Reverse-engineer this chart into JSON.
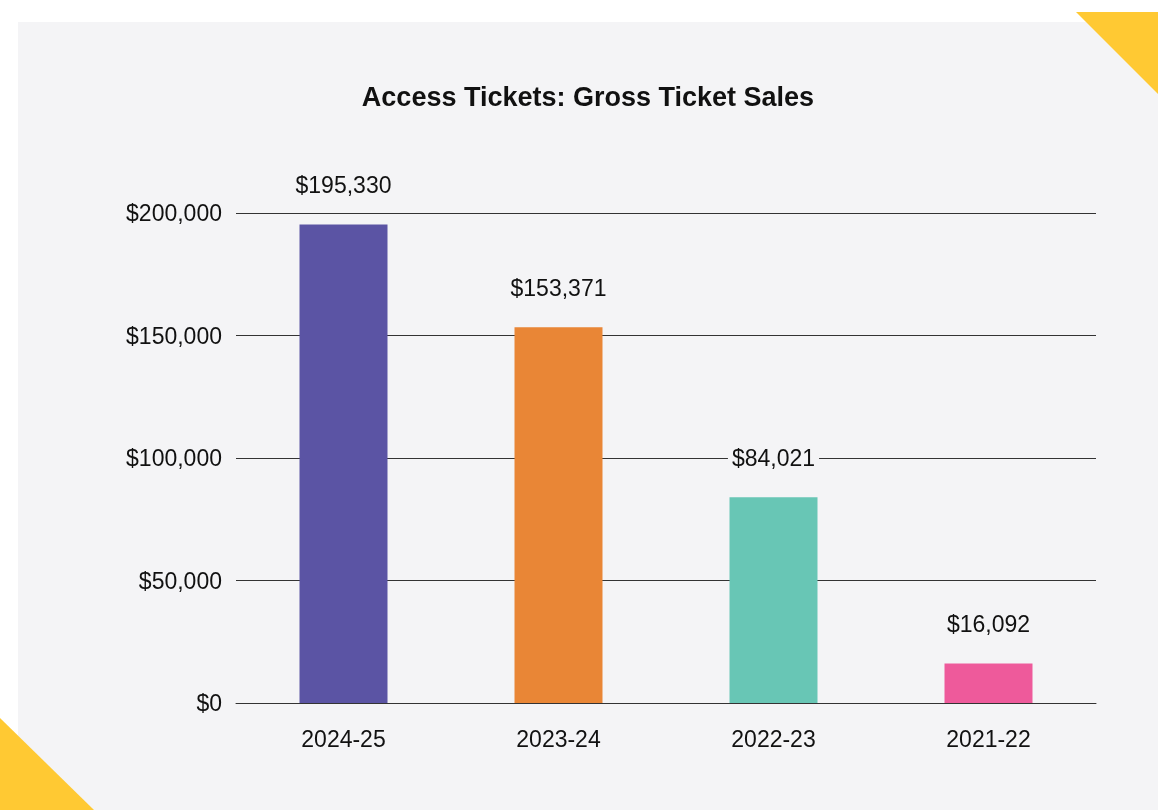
{
  "chart_data": {
    "type": "bar",
    "title": "Access Tickets: Gross Ticket Sales",
    "categories": [
      "2024-25",
      "2023-24",
      "2022-23",
      "2021-22"
    ],
    "values": [
      195330,
      153371,
      84021,
      16092
    ],
    "colors": [
      "#5b54a4",
      "#e98636",
      "#68c6b5",
      "#ee5a9b"
    ],
    "value_labels": [
      "$195,330",
      "$153,371",
      "$84,021",
      "$16,092"
    ],
    "ylim": [
      0,
      200000
    ],
    "yticks": [
      {
        "value": 0,
        "label": "$0"
      },
      {
        "value": 50000,
        "label": "$50,000"
      },
      {
        "value": 100000,
        "label": "$100,000"
      },
      {
        "value": 150000,
        "label": "$150,000"
      },
      {
        "value": 200000,
        "label": "$200,000"
      }
    ],
    "grid": "y"
  }
}
